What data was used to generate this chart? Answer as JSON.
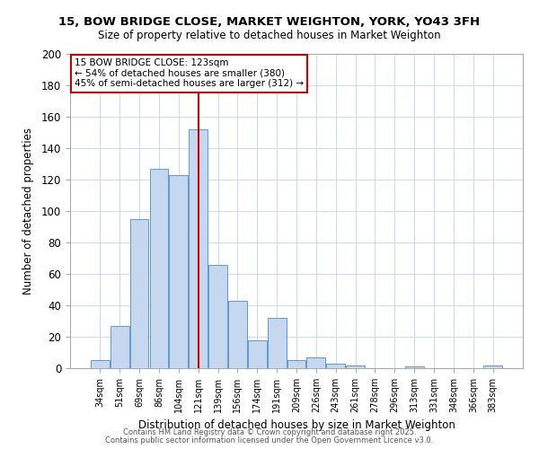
{
  "title": "15, BOW BRIDGE CLOSE, MARKET WEIGHTON, YORK, YO43 3FH",
  "subtitle": "Size of property relative to detached houses in Market Weighton",
  "xlabel": "Distribution of detached houses by size in Market Weighton",
  "ylabel": "Number of detached properties",
  "bar_labels": [
    "34sqm",
    "51sqm",
    "69sqm",
    "86sqm",
    "104sqm",
    "121sqm",
    "139sqm",
    "156sqm",
    "174sqm",
    "191sqm",
    "209sqm",
    "226sqm",
    "243sqm",
    "261sqm",
    "278sqm",
    "296sqm",
    "313sqm",
    "331sqm",
    "348sqm",
    "366sqm",
    "383sqm"
  ],
  "bar_values": [
    5,
    27,
    95,
    127,
    123,
    152,
    66,
    43,
    18,
    32,
    5,
    7,
    3,
    2,
    0,
    0,
    1,
    0,
    0,
    0,
    2
  ],
  "bar_color": "#c5d8f0",
  "bar_edge_color": "#5b9bd5",
  "ylim": [
    0,
    200
  ],
  "yticks": [
    0,
    20,
    40,
    60,
    80,
    100,
    120,
    140,
    160,
    180,
    200
  ],
  "property_line_x": 5,
  "annotation_title": "15 BOW BRIDGE CLOSE: 123sqm",
  "annotation_line1": "← 54% of detached houses are smaller (380)",
  "annotation_line2": "45% of semi-detached houses are larger (312) →",
  "annotation_box_color": "#ffffff",
  "annotation_box_edge_color": "#cc0000",
  "property_line_color": "#cc0000",
  "grid_color": "#ccdcee",
  "background_color": "#ffffff",
  "footer1": "Contains HM Land Registry data © Crown copyright and database right 2025.",
  "footer2": "Contains public sector information licensed under the Open Government Licence v3.0."
}
